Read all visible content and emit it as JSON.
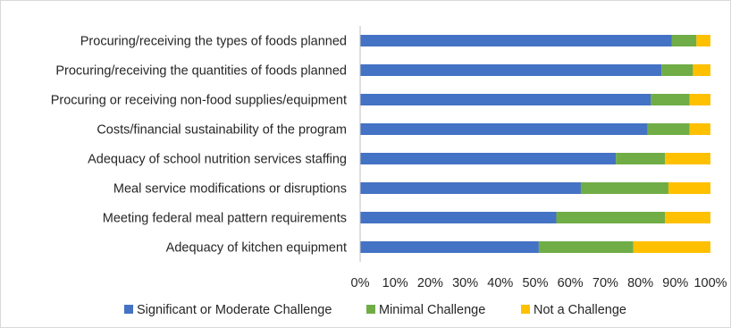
{
  "chart_data": {
    "type": "bar",
    "orientation": "horizontal",
    "stacked": "percent",
    "categories": [
      "Procuring/receiving the types of foods planned",
      "Procuring/receiving the quantities of foods planned",
      "Procuring or receiving non-food supplies/equipment",
      "Costs/financial sustainability of the program",
      "Adequacy of school nutrition services staffing",
      "Meal service modifications or disruptions",
      "Meeting federal meal pattern requirements",
      "Adequacy of kitchen equipment"
    ],
    "series": [
      {
        "name": "Significant or Moderate Challenge",
        "color": "#4472C4",
        "values": [
          89,
          86,
          83,
          82,
          73,
          63,
          56,
          51
        ]
      },
      {
        "name": "Minimal Challenge",
        "color": "#70AD47",
        "values": [
          7,
          9,
          11,
          12,
          14,
          25,
          31,
          27
        ]
      },
      {
        "name": "Not a Challenge",
        "color": "#FFC000",
        "values": [
          4,
          5,
          6,
          6,
          13,
          12,
          13,
          22
        ]
      }
    ],
    "xticks": [
      "0%",
      "10%",
      "20%",
      "30%",
      "40%",
      "50%",
      "60%",
      "70%",
      "80%",
      "90%",
      "100%"
    ],
    "xlim": [
      0,
      100
    ],
    "title": "",
    "xlabel": "",
    "ylabel": "",
    "grid": false,
    "legend_position": "bottom"
  }
}
